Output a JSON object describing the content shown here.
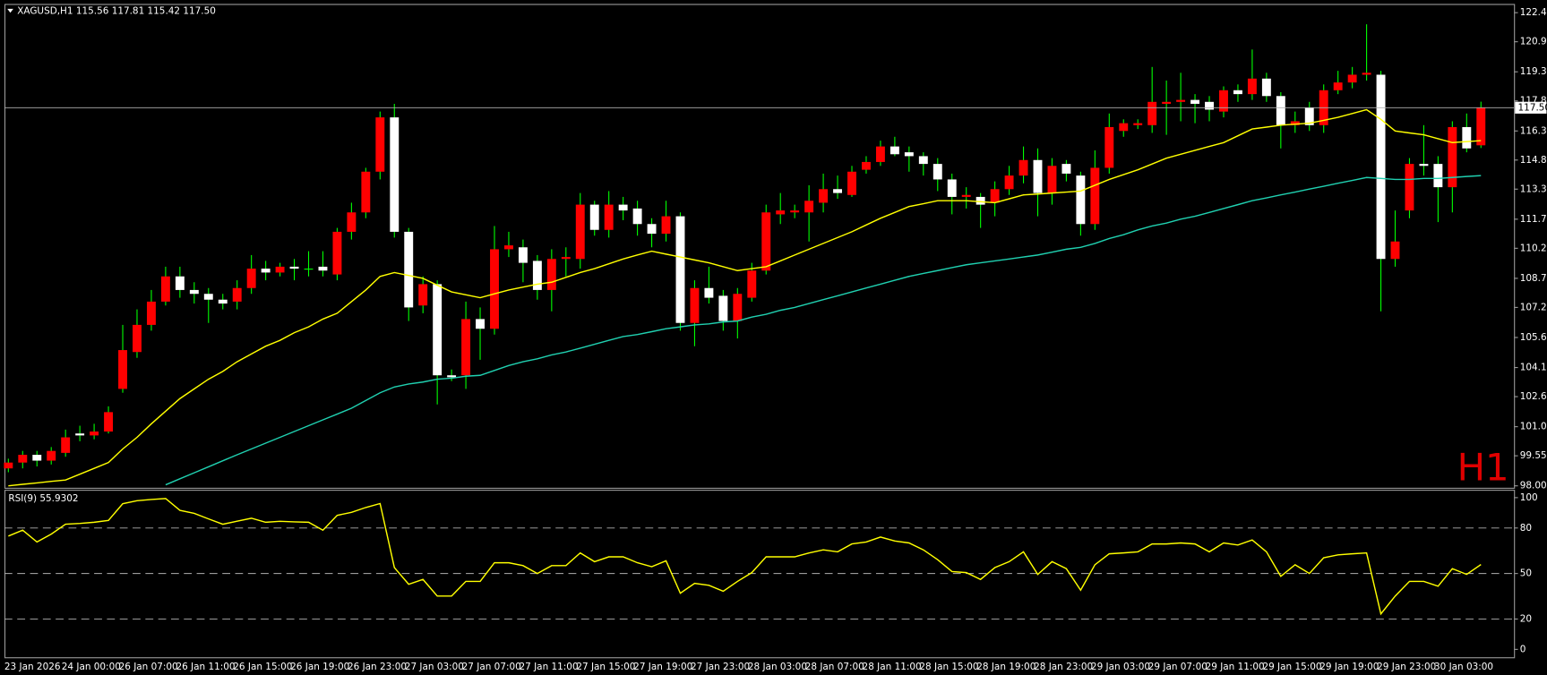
{
  "chart_data": [
    {
      "type": "candlestick",
      "title": "XAGUSD,H1  115.56 117.81 115.42 117.50",
      "timeframe_label": "H1",
      "categories": [
        "23 Jan 2026",
        null,
        null,
        null,
        "24 Jan 00:00",
        null,
        null,
        null,
        "26 Jan 07:00",
        null,
        null,
        null,
        "26 Jan 11:00",
        null,
        null,
        null,
        "26 Jan 15:00",
        null,
        null,
        null,
        "26 Jan 19:00",
        null,
        null,
        null,
        "26 Jan 23:00",
        null,
        null,
        null,
        "27 Jan 03:00",
        null,
        null,
        null,
        "27 Jan 07:00",
        null,
        null,
        null,
        "27 Jan 11:00",
        null,
        null,
        null,
        "27 Jan 15:00",
        null,
        null,
        null,
        "27 Jan 19:00",
        null,
        null,
        null,
        "27 Jan 23:00",
        null,
        null,
        null,
        "28 Jan 03:00",
        null,
        null,
        null,
        "28 Jan 07:00",
        null,
        null,
        null,
        "28 Jan 11:00",
        null,
        null,
        null,
        "28 Jan 15:00",
        null,
        null,
        null,
        "28 Jan 19:00",
        null,
        null,
        null,
        "28 Jan 23:00",
        null,
        null,
        null,
        "29 Jan 03:00",
        null,
        null,
        null,
        "29 Jan 07:00",
        null,
        null,
        null,
        "29 Jan 11:00",
        null,
        null,
        null,
        "29 Jan 15:00",
        null,
        null,
        null,
        "29 Jan 19:00",
        null,
        null,
        null,
        "29 Jan 23:00",
        null,
        null,
        null,
        "30 Jan 03:00",
        null,
        null,
        null
      ],
      "open": [
        98.9,
        99.2,
        99.6,
        99.3,
        99.7,
        100.7,
        100.6,
        100.8,
        103.0,
        104.9,
        106.3,
        107.5,
        108.8,
        108.1,
        107.9,
        107.6,
        107.5,
        108.2,
        109.2,
        109.0,
        109.3,
        109.2,
        109.3,
        108.9,
        111.1,
        112.1,
        114.2,
        117.0,
        111.1,
        107.3,
        108.4,
        103.7,
        103.7,
        106.6,
        106.1,
        110.2,
        110.3,
        109.6,
        108.1,
        109.7,
        109.7,
        112.5,
        111.2,
        112.5,
        112.3,
        111.5,
        111.0,
        111.9,
        106.4,
        108.2,
        107.8,
        106.5,
        107.7,
        109.1,
        112.0,
        112.1,
        112.1,
        112.6,
        113.3,
        113.0,
        114.3,
        114.7,
        115.5,
        115.2,
        115.0,
        114.6,
        113.8,
        112.9,
        112.9,
        112.6,
        113.3,
        114.0,
        114.8,
        113.1,
        114.6,
        114.0,
        111.5,
        114.4,
        116.3,
        116.6,
        116.6,
        117.7,
        117.8,
        117.9,
        117.8,
        117.3,
        118.4,
        118.2,
        119.0,
        118.1,
        116.6,
        117.5,
        116.6,
        118.4,
        118.8,
        119.2,
        119.2,
        109.7,
        112.2,
        114.6,
        114.6,
        113.4,
        116.5,
        115.56
      ],
      "high": [
        99.4,
        99.8,
        99.8,
        100.0,
        100.9,
        101.1,
        101.2,
        102.1,
        106.3,
        107.1,
        108.1,
        109.3,
        109.3,
        108.5,
        108.2,
        107.9,
        108.6,
        109.9,
        109.6,
        109.5,
        109.7,
        110.1,
        110.1,
        111.3,
        112.6,
        114.4,
        117.3,
        117.7,
        111.3,
        108.8,
        108.6,
        104.0,
        107.5,
        107.2,
        111.4,
        111.1,
        110.7,
        109.9,
        110.2,
        110.3,
        113.1,
        112.7,
        113.2,
        112.9,
        112.7,
        111.8,
        112.7,
        112.1,
        108.6,
        109.3,
        108.1,
        108.2,
        109.5,
        112.5,
        113.1,
        112.5,
        113.5,
        114.1,
        114.0,
        114.5,
        115.0,
        115.8,
        116.0,
        115.5,
        115.2,
        114.9,
        114.1,
        113.4,
        113.1,
        113.7,
        114.5,
        115.5,
        115.4,
        114.9,
        114.8,
        114.2,
        115.3,
        117.2,
        116.9,
        116.9,
        119.6,
        118.9,
        119.3,
        118.2,
        118.1,
        118.6,
        118.7,
        120.5,
        119.3,
        118.3,
        117.3,
        117.8,
        118.7,
        119.4,
        119.6,
        121.8,
        119.4,
        112.2,
        114.9,
        116.6,
        115.0,
        116.8,
        117.2,
        117.81
      ],
      "low": [
        98.7,
        98.9,
        99.0,
        99.1,
        99.5,
        100.3,
        100.4,
        100.7,
        102.8,
        104.6,
        106.0,
        107.3,
        107.7,
        107.4,
        106.4,
        107.1,
        107.1,
        107.9,
        108.6,
        108.8,
        108.6,
        108.8,
        108.8,
        108.6,
        110.7,
        111.8,
        113.8,
        110.8,
        106.5,
        106.9,
        102.2,
        103.4,
        103.0,
        104.5,
        105.8,
        109.8,
        108.5,
        107.6,
        107.0,
        108.8,
        109.2,
        110.9,
        110.8,
        111.7,
        110.9,
        110.3,
        110.6,
        106.0,
        105.2,
        107.4,
        106.0,
        105.6,
        107.5,
        108.9,
        111.5,
        111.8,
        110.6,
        112.1,
        112.8,
        112.9,
        114.1,
        114.5,
        115.0,
        114.2,
        114.0,
        113.2,
        112.0,
        112.3,
        111.3,
        111.9,
        113.0,
        113.6,
        111.9,
        112.5,
        113.7,
        110.9,
        111.2,
        114.1,
        116.0,
        116.4,
        116.2,
        116.1,
        116.8,
        116.7,
        116.8,
        117.0,
        117.8,
        117.9,
        117.8,
        115.4,
        116.2,
        116.3,
        116.2,
        118.2,
        118.5,
        118.9,
        107.0,
        109.3,
        111.8,
        114.0,
        111.6,
        112.1,
        115.2,
        115.42
      ],
      "close": [
        99.2,
        99.6,
        99.3,
        99.8,
        100.5,
        100.6,
        100.8,
        101.8,
        105.0,
        106.3,
        107.5,
        108.8,
        108.1,
        107.9,
        107.6,
        107.4,
        108.2,
        109.2,
        109.0,
        109.3,
        109.2,
        109.2,
        109.1,
        111.1,
        112.1,
        114.2,
        117.0,
        111.1,
        107.2,
        108.4,
        103.7,
        103.6,
        106.6,
        106.1,
        110.2,
        110.4,
        109.5,
        108.1,
        109.7,
        109.8,
        112.5,
        111.2,
        112.5,
        112.2,
        111.5,
        111.0,
        111.9,
        106.4,
        108.2,
        107.7,
        106.5,
        107.9,
        109.1,
        112.1,
        112.2,
        112.2,
        112.7,
        113.3,
        113.1,
        114.2,
        114.7,
        115.5,
        115.1,
        115.0,
        114.6,
        113.8,
        112.9,
        113.0,
        112.5,
        113.3,
        114.0,
        114.8,
        113.1,
        114.5,
        114.1,
        111.5,
        114.4,
        116.5,
        116.7,
        116.7,
        117.8,
        117.8,
        117.9,
        117.7,
        117.4,
        118.4,
        118.2,
        119.0,
        118.1,
        116.6,
        116.8,
        116.6,
        118.4,
        118.8,
        119.2,
        119.3,
        109.7,
        110.6,
        114.6,
        114.5,
        113.4,
        116.5,
        115.4,
        117.5
      ],
      "up_color": "#ff0000",
      "down_color": "#ffffff",
      "wick_color": "#00ff00",
      "overlays": [
        {
          "color": "#ffff00",
          "values": [
            98.0,
            98.08,
            98.15,
            98.23,
            98.3,
            98.6,
            98.9,
            99.2,
            99.9,
            100.5,
            101.2,
            101.85,
            102.5,
            103.0,
            103.5,
            103.9,
            104.4,
            104.8,
            105.2,
            105.5,
            105.9,
            106.2,
            106.6,
            106.9,
            107.5,
            108.1,
            108.8,
            109.0,
            108.85,
            108.7,
            108.35,
            108.0,
            107.85,
            107.7,
            107.9,
            108.1,
            108.25,
            108.4,
            108.5,
            108.75,
            109.0,
            109.2,
            109.45,
            109.7,
            109.9,
            110.1,
            109.95,
            109.8,
            109.65,
            109.5,
            109.3,
            109.1,
            109.2,
            109.3,
            109.6,
            109.9,
            110.2,
            110.5,
            110.8,
            111.1,
            111.45,
            111.8,
            112.1,
            112.4,
            112.55,
            112.7,
            112.7,
            112.7,
            112.65,
            112.6,
            112.8,
            113.0,
            113.05,
            113.1,
            113.15,
            113.2,
            113.5,
            113.8,
            114.05,
            114.3,
            114.6,
            114.9,
            115.1,
            115.3,
            115.5,
            115.7,
            116.05,
            116.4,
            116.5,
            116.6,
            116.65,
            116.7,
            116.85,
            117.0,
            117.2,
            117.4,
            116.9,
            116.3,
            116.2,
            116.1,
            115.9,
            115.7,
            115.75,
            115.8
          ]
        },
        {
          "color": "#20d0b0",
          "values": [
            null,
            null,
            null,
            null,
            null,
            null,
            null,
            null,
            null,
            null,
            null,
            98.05,
            98.36,
            98.67,
            98.98,
            99.29,
            99.6,
            99.9,
            100.2,
            100.5,
            100.8,
            101.1,
            101.4,
            101.7,
            102.0,
            102.4,
            102.8,
            103.1,
            103.25,
            103.35,
            103.5,
            103.55,
            103.65,
            103.7,
            103.95,
            104.2,
            104.4,
            104.55,
            104.75,
            104.9,
            105.1,
            105.3,
            105.5,
            105.7,
            105.8,
            105.95,
            106.1,
            106.2,
            106.3,
            106.35,
            106.45,
            106.5,
            106.7,
            106.85,
            107.05,
            107.2,
            107.4,
            107.6,
            107.8,
            108.0,
            108.2,
            108.4,
            108.6,
            108.8,
            108.95,
            109.1,
            109.25,
            109.4,
            109.5,
            109.6,
            109.7,
            109.8,
            109.9,
            110.05,
            110.2,
            110.3,
            110.5,
            110.75,
            110.95,
            111.2,
            111.4,
            111.55,
            111.75,
            111.9,
            112.1,
            112.3,
            112.5,
            112.7,
            112.85,
            113.0,
            113.15,
            113.3,
            113.45,
            113.6,
            113.75,
            113.9,
            113.85,
            113.8,
            113.8,
            113.85,
            113.85,
            113.9,
            113.95,
            114.0
          ]
        }
      ],
      "current_price": {
        "value": 117.5,
        "label": "117.50"
      },
      "ylim": [
        97.9,
        122.85
      ],
      "yticks": [
        {
          "value": 98.0,
          "label": "98.00"
        },
        {
          "value": 99.55,
          "label": "99.55"
        },
        {
          "value": 101.05,
          "label": "101.05"
        },
        {
          "value": 102.6,
          "label": "102.60"
        },
        {
          "value": 104.1,
          "label": "104.10"
        },
        {
          "value": 105.65,
          "label": "105.65"
        },
        {
          "value": 107.2,
          "label": "107.20"
        },
        {
          "value": 108.7,
          "label": "108.70"
        },
        {
          "value": 110.25,
          "label": "110.25"
        },
        {
          "value": 111.75,
          "label": "111.75"
        },
        {
          "value": 113.3,
          "label": "113.30"
        },
        {
          "value": 114.8,
          "label": "114.80"
        },
        {
          "value": 116.3,
          "label": "116.30"
        },
        {
          "value": 117.85,
          "label": "117.85"
        },
        {
          "value": 119.35,
          "label": "119.35"
        },
        {
          "value": 120.9,
          "label": "120.90"
        },
        {
          "value": 122.4,
          "label": "122.40"
        }
      ],
      "grid": false
    },
    {
      "type": "line",
      "title": "RSI(9) 55.9302",
      "color": "#ffff00",
      "values": [
        74.7,
        78.6,
        70.8,
        76.0,
        82.5,
        83.0,
        83.8,
        85.0,
        96.0,
        98.0,
        98.8,
        99.4,
        91.6,
        89.6,
        86.0,
        82.5,
        84.5,
        86.4,
        83.8,
        84.4,
        84.0,
        83.8,
        78.6,
        88.3,
        90.3,
        93.5,
        96.1,
        53.9,
        42.9,
        46.1,
        35.1,
        35.1,
        44.8,
        44.8,
        57.1,
        57.1,
        55.2,
        50.0,
        55.2,
        55.2,
        63.6,
        57.8,
        61.0,
        61.0,
        57.1,
        54.5,
        58.4,
        37.0,
        43.5,
        42.2,
        38.3,
        44.8,
        50.6,
        61.0,
        61.0,
        61.0,
        63.5,
        65.6,
        64.3,
        69.5,
        70.8,
        74.0,
        71.4,
        70.1,
        65.6,
        59.1,
        51.3,
        50.6,
        46.1,
        53.9,
        57.8,
        64.3,
        49.4,
        57.8,
        53.2,
        39.0,
        55.8,
        63.0,
        63.6,
        64.3,
        69.5,
        69.5,
        70.1,
        69.5,
        64.3,
        70.1,
        68.8,
        72.1,
        64.3,
        48.1,
        55.8,
        50.0,
        60.4,
        62.3,
        63.0,
        63.6,
        23.4,
        35.1,
        44.8,
        44.8,
        41.6,
        53.2,
        49.4,
        55.9302
      ],
      "ylim": [
        -5.2,
        105.2
      ],
      "yticks": [
        0,
        20,
        50,
        80,
        100
      ],
      "levels": [
        20,
        50,
        80
      ],
      "grid": false
    }
  ]
}
